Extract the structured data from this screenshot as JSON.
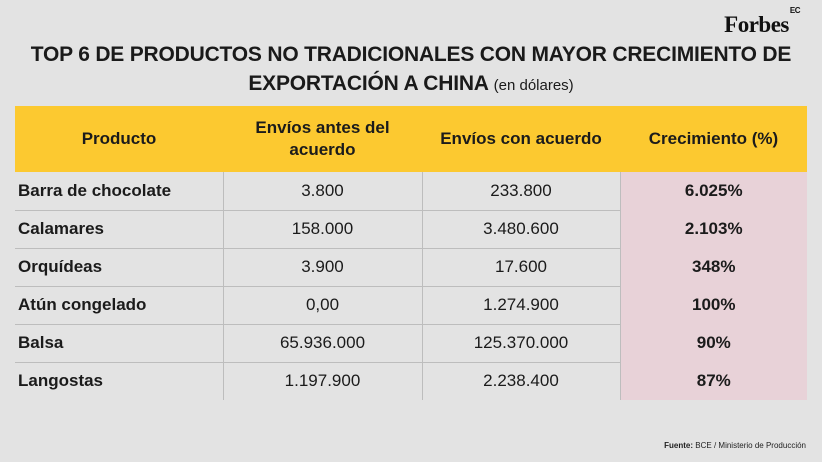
{
  "brand": {
    "name": "Forbes",
    "edition": "EC"
  },
  "title": {
    "main": "TOP 6 DE PRODUCTOS NO TRADICIONALES CON MAYOR CRECIMIENTO DE EXPORTACIÓN A CHINA",
    "subtitle": "(en dólares)"
  },
  "table": {
    "headers": [
      "Producto",
      "Envíos antes del acuerdo",
      "Envíos con acuerdo",
      "Crecimiento (%)"
    ],
    "rows": [
      {
        "producto": "Barra de chocolate",
        "antes": "3.800",
        "con": "233.800",
        "crecimiento": "6.025%"
      },
      {
        "producto": "Calamares",
        "antes": "158.000",
        "con": "3.480.600",
        "crecimiento": "2.103%"
      },
      {
        "producto": "Orquídeas",
        "antes": "3.900",
        "con": "17.600",
        "crecimiento": "348%"
      },
      {
        "producto": "Atún congelado",
        "antes": "0,00",
        "con": "1.274.900",
        "crecimiento": "100%"
      },
      {
        "producto": "Balsa",
        "antes": "65.936.000",
        "con": "125.370.000",
        "crecimiento": "90%"
      },
      {
        "producto": "Langostas",
        "antes": "1.197.900",
        "con": "2.238.400",
        "crecimiento": "87%"
      }
    ]
  },
  "source": {
    "label": "Fuente:",
    "text": "BCE / Ministerio de Producción"
  }
}
